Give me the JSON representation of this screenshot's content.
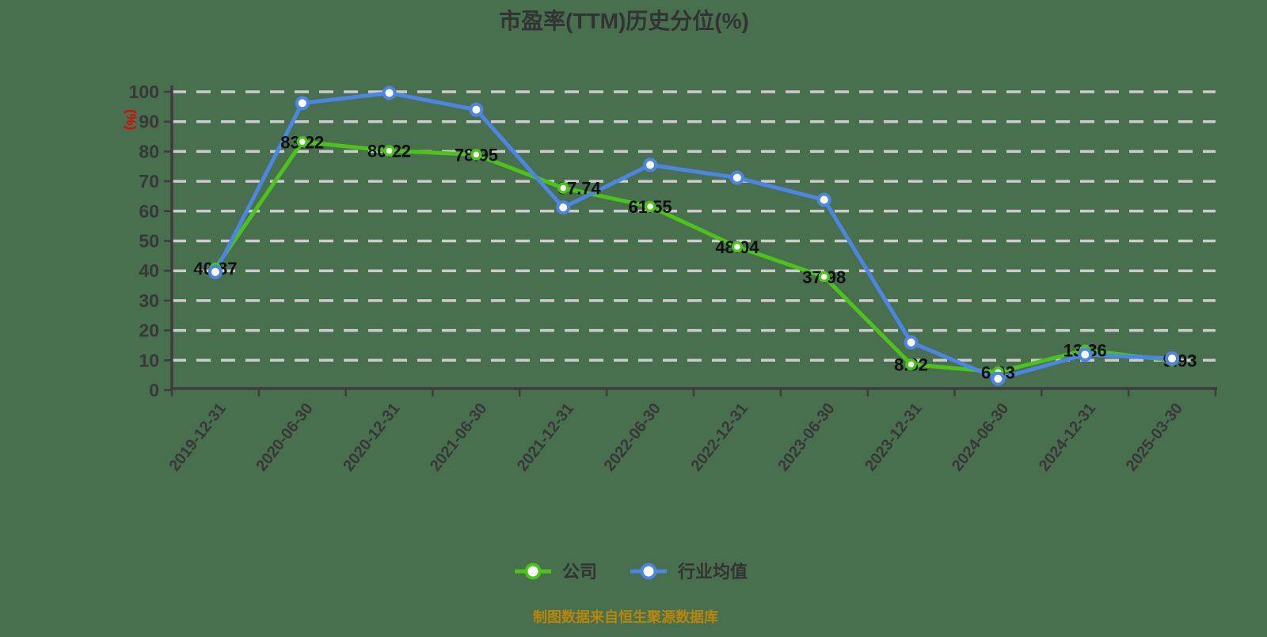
{
  "page": {
    "background_color": "#486F4E"
  },
  "footer": {
    "source_note": "制图数据来自恒生聚源数据库",
    "color": "#B8860B"
  },
  "chart_data": {
    "type": "line",
    "title": "市盈率(TTM)历史分位(%)",
    "ylabel": "(%)",
    "xlabel": "",
    "ylim": [
      0,
      100
    ],
    "y_ticks": [
      0,
      10,
      20,
      30,
      40,
      50,
      60,
      70,
      80,
      90,
      100
    ],
    "grid": "horizontal-dashed",
    "grid_color": "#CCCCCC",
    "axis_color": "#3D3D3D",
    "background_color": "#486F4E",
    "legend_position": "bottom",
    "categories": [
      "2019-12-31",
      "2020-06-30",
      "2020-12-31",
      "2021-06-30",
      "2021-12-31",
      "2022-06-30",
      "2022-12-31",
      "2023-06-30",
      "2023-12-31",
      "2024-06-30",
      "2024-12-31",
      "2025-03-30"
    ],
    "series": [
      {
        "name": "公司",
        "color": "#4DC31A",
        "marker": "circle-white-fill",
        "values": [
          40.87,
          83.22,
          80.22,
          78.95,
          67.74,
          61.55,
          48.04,
          37.98,
          8.62,
          6.03,
          13.36,
          9.93
        ],
        "point_labels": [
          "40.87",
          "83.22",
          "80.22",
          "78.95",
          "67.74",
          "61.55",
          "48.04",
          "37.98",
          "8.62",
          "6.03",
          "13.36",
          "9.93"
        ]
      },
      {
        "name": "行业均值",
        "color": "#4E84E4",
        "marker": "circle-white-fill",
        "values": [
          39.6,
          96.2,
          99.6,
          94.0,
          61.2,
          75.5,
          71.2,
          63.8,
          16.0,
          3.8,
          11.9,
          10.6
        ],
        "point_labels": []
      }
    ]
  }
}
